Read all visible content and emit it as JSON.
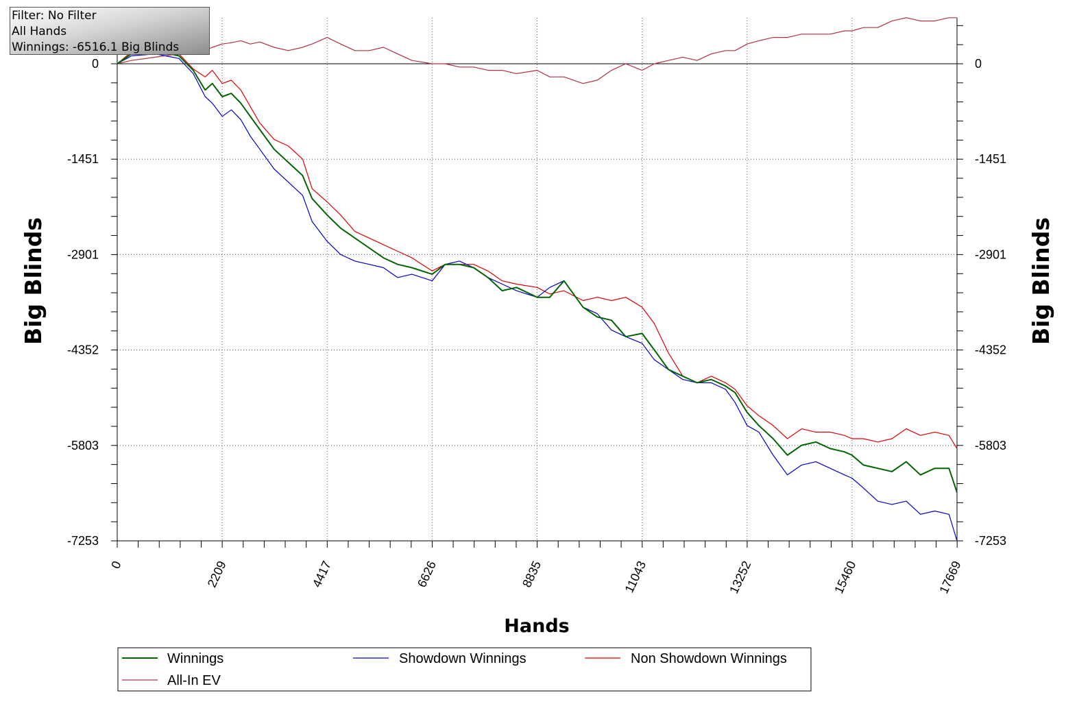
{
  "filter_box": {
    "line1": "Filter: No Filter",
    "line2": "All Hands",
    "line3": "Winnings: -6516.1 Big Blinds"
  },
  "chart_data": {
    "type": "line",
    "xlabel": "Hands",
    "ylabel": "Big Blinds",
    "xlim": [
      0,
      17669
    ],
    "ylim": [
      -7253,
      700
    ],
    "x_ticks": [
      0,
      2209,
      4417,
      6626,
      8835,
      11043,
      13252,
      15460,
      17669
    ],
    "y_ticks": [
      0,
      -1451,
      -2901,
      -4352,
      -5803,
      -7253
    ],
    "grid": true,
    "legend_position": "bottom",
    "colors": {
      "Winnings": "#006400",
      "Showdown Winnings": "#0000cc",
      "Non Showdown Winnings": "#dd0000",
      "All-In EV": "#b03040"
    },
    "legend": [
      "Winnings",
      "Showdown Winnings",
      "Non Showdown Winnings",
      "All-In EV"
    ],
    "series": [
      {
        "name": "Winnings",
        "x": [
          0,
          300,
          800,
          1300,
          1600,
          1850,
          2000,
          2209,
          2400,
          2600,
          2800,
          3000,
          3300,
          3600,
          3900,
          4100,
          4417,
          4700,
          5000,
          5300,
          5600,
          5900,
          6200,
          6626,
          6900,
          7200,
          7500,
          7800,
          8100,
          8400,
          8835,
          9100,
          9400,
          9800,
          10100,
          10400,
          10700,
          11043,
          11300,
          11600,
          11900,
          12200,
          12500,
          12800,
          13000,
          13252,
          13500,
          13800,
          14100,
          14400,
          14700,
          15000,
          15300,
          15460,
          15700,
          16000,
          16300,
          16600,
          16900,
          17200,
          17500,
          17669
        ],
        "values": [
          0,
          150,
          200,
          120,
          -100,
          -400,
          -300,
          -500,
          -450,
          -600,
          -800,
          -1000,
          -1300,
          -1500,
          -1700,
          -2050,
          -2300,
          -2500,
          -2650,
          -2800,
          -2950,
          -3050,
          -3100,
          -3200,
          -3050,
          -3050,
          -3100,
          -3250,
          -3450,
          -3400,
          -3550,
          -3550,
          -3300,
          -3700,
          -3850,
          -3900,
          -4150,
          -4100,
          -4350,
          -4650,
          -4750,
          -4850,
          -4800,
          -4900,
          -5000,
          -5300,
          -5500,
          -5700,
          -5950,
          -5800,
          -5750,
          -5850,
          -5900,
          -5950,
          -6100,
          -6150,
          -6200,
          -6050,
          -6250,
          -6150,
          -6150,
          -6516
        ]
      },
      {
        "name": "Showdown Winnings",
        "x": [
          0,
          300,
          800,
          1300,
          1600,
          1850,
          2000,
          2209,
          2400,
          2600,
          2800,
          3000,
          3300,
          3600,
          3900,
          4100,
          4417,
          4700,
          5000,
          5300,
          5600,
          5900,
          6200,
          6626,
          6900,
          7200,
          7500,
          7800,
          8100,
          8400,
          8835,
          9100,
          9400,
          9800,
          10100,
          10400,
          10700,
          11043,
          11300,
          11600,
          11900,
          12200,
          12500,
          12800,
          13000,
          13252,
          13500,
          13800,
          14100,
          14400,
          14700,
          15000,
          15300,
          15460,
          15700,
          16000,
          16300,
          16600,
          16900,
          17200,
          17500,
          17669
        ],
        "values": [
          0,
          120,
          150,
          80,
          -150,
          -500,
          -600,
          -800,
          -700,
          -850,
          -1100,
          -1300,
          -1600,
          -1800,
          -2000,
          -2400,
          -2700,
          -2900,
          -3000,
          -3050,
          -3100,
          -3250,
          -3200,
          -3300,
          -3050,
          -3000,
          -3100,
          -3250,
          -3350,
          -3450,
          -3550,
          -3400,
          -3300,
          -3700,
          -3800,
          -4050,
          -4150,
          -4250,
          -4500,
          -4650,
          -4800,
          -4850,
          -4850,
          -4950,
          -5150,
          -5500,
          -5600,
          -5950,
          -6250,
          -6100,
          -6050,
          -6150,
          -6250,
          -6300,
          -6450,
          -6650,
          -6700,
          -6650,
          -6850,
          -6800,
          -6850,
          -7253
        ]
      },
      {
        "name": "Non Showdown Winnings",
        "x": [
          0,
          300,
          800,
          1300,
          1600,
          1850,
          2000,
          2209,
          2400,
          2600,
          2800,
          3000,
          3300,
          3600,
          3900,
          4100,
          4417,
          4700,
          5000,
          5300,
          5600,
          5900,
          6200,
          6626,
          6900,
          7200,
          7500,
          7800,
          8100,
          8400,
          8835,
          9100,
          9400,
          9800,
          10100,
          10400,
          10700,
          11043,
          11300,
          11600,
          11900,
          12200,
          12500,
          12800,
          13000,
          13252,
          13500,
          13800,
          14100,
          14400,
          14700,
          15000,
          15300,
          15460,
          15700,
          16000,
          16300,
          16600,
          16900,
          17200,
          17500,
          17669
        ],
        "values": [
          0,
          180,
          250,
          150,
          -80,
          -200,
          -100,
          -300,
          -250,
          -400,
          -650,
          -900,
          -1150,
          -1250,
          -1450,
          -1900,
          -2100,
          -2300,
          -2550,
          -2650,
          -2750,
          -2850,
          -2950,
          -3150,
          -3050,
          -3050,
          -3050,
          -3150,
          -3300,
          -3350,
          -3400,
          -3500,
          -3450,
          -3600,
          -3550,
          -3600,
          -3550,
          -3700,
          -3950,
          -4400,
          -4750,
          -4850,
          -4750,
          -4850,
          -4950,
          -5200,
          -5350,
          -5500,
          -5700,
          -5550,
          -5600,
          -5600,
          -5650,
          -5700,
          -5700,
          -5750,
          -5700,
          -5550,
          -5650,
          -5600,
          -5650,
          -5850
        ]
      },
      {
        "name": "All-In EV",
        "x": [
          0,
          300,
          800,
          1300,
          1600,
          1850,
          2000,
          2209,
          2400,
          2600,
          2800,
          3000,
          3300,
          3600,
          3900,
          4100,
          4417,
          4700,
          5000,
          5300,
          5600,
          5900,
          6200,
          6626,
          6900,
          7200,
          7500,
          7800,
          8100,
          8400,
          8835,
          9100,
          9400,
          9800,
          10100,
          10400,
          10700,
          11043,
          11300,
          11600,
          11900,
          12200,
          12500,
          12800,
          13000,
          13252,
          13500,
          13800,
          14100,
          14400,
          14700,
          15000,
          15300,
          15460,
          15700,
          16000,
          16300,
          16600,
          16900,
          17200,
          17500,
          17669
        ],
        "values": [
          0,
          50,
          100,
          150,
          170,
          200,
          250,
          300,
          320,
          350,
          300,
          330,
          250,
          200,
          250,
          300,
          400,
          300,
          200,
          200,
          250,
          150,
          50,
          0,
          0,
          -50,
          -50,
          -100,
          -100,
          -150,
          -100,
          -200,
          -200,
          -300,
          -250,
          -100,
          0,
          -100,
          0,
          50,
          100,
          50,
          150,
          200,
          200,
          300,
          350,
          400,
          400,
          450,
          450,
          450,
          500,
          500,
          550,
          550,
          650,
          700,
          650,
          650,
          700,
          700
        ]
      }
    ]
  }
}
